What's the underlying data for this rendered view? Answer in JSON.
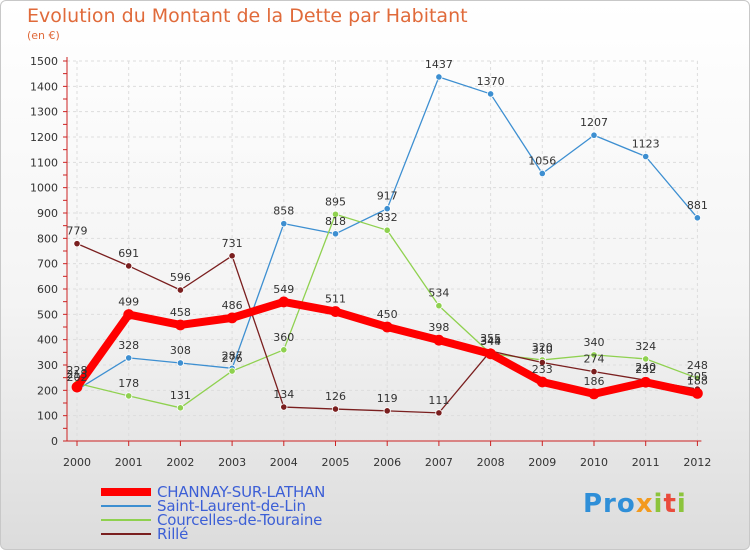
{
  "header": {
    "title": "Evolution du Montant de la Dette par Habitant",
    "subtitle": "(en €)"
  },
  "logo": {
    "text": "Proxiti"
  },
  "chart_data": {
    "type": "line",
    "title": "Evolution du Montant de la Dette par Habitant",
    "subtitle": "(en €)",
    "xlabel": "",
    "ylabel": "",
    "categories": [
      "2000",
      "2001",
      "2002",
      "2003",
      "2004",
      "2005",
      "2006",
      "2007",
      "2008",
      "2009",
      "2010",
      "2011",
      "2012"
    ],
    "yticks": [
      0,
      100,
      200,
      300,
      400,
      500,
      600,
      700,
      800,
      900,
      1000,
      1100,
      1200,
      1300,
      1400,
      1500
    ],
    "ylim": [
      0,
      1500
    ],
    "grid": true,
    "legend_position": "bottom",
    "series": [
      {
        "name": "CHANNAY-SUR-LATHAN",
        "color": "#ff0000",
        "values": [
          213,
          499,
          458,
          486,
          549,
          511,
          450,
          398,
          344,
          233,
          186,
          232,
          188
        ],
        "labels": [
          "213",
          "499",
          "458",
          "486",
          "549",
          "511",
          "450",
          "398",
          "344",
          "233",
          "186",
          "232",
          "188"
        ]
      },
      {
        "name": "Saint-Laurent-de-Lin",
        "color": "#3d8fd1",
        "values": [
          202,
          328,
          308,
          287,
          858,
          818,
          917,
          1437,
          1370,
          1056,
          1207,
          1123,
          881
        ],
        "labels": [
          "202",
          "328",
          "308",
          "287",
          "858",
          "818",
          "917",
          "1437",
          "1370",
          "1056",
          "1207",
          "1123",
          "881"
        ]
      },
      {
        "name": "Courcelles-de-Touraine",
        "color": "#8fd14f",
        "values": [
          228,
          178,
          131,
          276,
          360,
          895,
          832,
          534,
          345,
          320,
          340,
          324,
          248
        ],
        "labels": [
          "228",
          "178",
          "131",
          "276",
          "360",
          "895",
          "832",
          "534",
          "345",
          "320",
          "340",
          "324",
          "248"
        ]
      },
      {
        "name": "Rillé",
        "color": "#7a1f1f",
        "values": [
          779,
          691,
          596,
          731,
          134,
          126,
          119,
          111,
          355,
          310,
          274,
          240,
          205
        ],
        "labels": [
          "779",
          "691",
          "596",
          "731",
          "134",
          "126",
          "119",
          "111",
          "355",
          "310",
          "274",
          "240",
          "205"
        ]
      }
    ]
  }
}
